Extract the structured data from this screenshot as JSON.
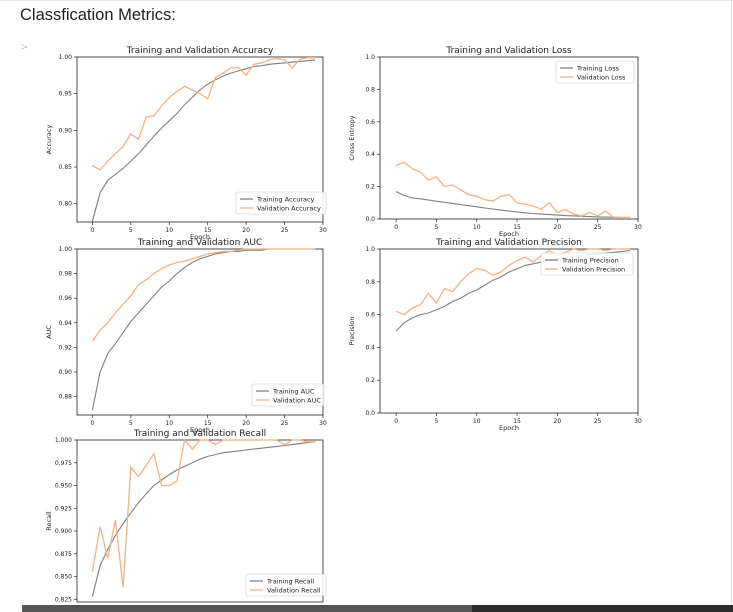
{
  "heading": "Classfication Metrics:",
  "out_prompt": ">",
  "colors": {
    "training": "#7f7f7f",
    "validation": "#f4b183",
    "axis": "#222222"
  },
  "chart_data": [
    {
      "type": "line",
      "title": "Training and Validation Accuracy",
      "xlabel": "Epoch",
      "ylabel": "Accuracy",
      "xlim": [
        -2,
        30
      ],
      "ylim": [
        0.775,
        1.0
      ],
      "xticks": [
        0,
        5,
        10,
        15,
        20,
        25,
        30
      ],
      "yticks": [
        0.8,
        0.85,
        0.9,
        0.95,
        1.0
      ],
      "ytick_labels": [
        "0.80",
        "0.85",
        "0.90",
        "0.95",
        "1.00"
      ],
      "legend": "lower-right",
      "x": [
        0,
        1,
        2,
        3,
        4,
        5,
        6,
        7,
        8,
        9,
        10,
        11,
        12,
        13,
        14,
        15,
        16,
        17,
        18,
        19,
        20,
        21,
        22,
        23,
        24,
        25,
        26,
        27,
        28,
        29
      ],
      "series": [
        {
          "name": "Training Accuracy",
          "role": "training",
          "values": [
            0.776,
            0.815,
            0.832,
            0.84,
            0.848,
            0.858,
            0.868,
            0.88,
            0.892,
            0.903,
            0.913,
            0.923,
            0.935,
            0.945,
            0.955,
            0.963,
            0.969,
            0.974,
            0.978,
            0.981,
            0.984,
            0.987,
            0.988,
            0.99,
            0.991,
            0.992,
            0.993,
            0.994,
            0.995,
            0.996
          ]
        },
        {
          "name": "Validation Accuracy",
          "role": "validation",
          "values": [
            0.852,
            0.846,
            0.858,
            0.868,
            0.878,
            0.895,
            0.888,
            0.918,
            0.92,
            0.933,
            0.945,
            0.953,
            0.96,
            0.955,
            0.95,
            0.943,
            0.972,
            0.978,
            0.985,
            0.986,
            0.975,
            0.99,
            0.992,
            0.996,
            0.998,
            0.996,
            0.985,
            0.997,
            0.999,
            0.999
          ]
        }
      ]
    },
    {
      "type": "line",
      "title": "Training and Validation Loss",
      "xlabel": "Epoch",
      "ylabel": "Cross Entropy",
      "xlim": [
        -2,
        30
      ],
      "ylim": [
        0.0,
        1.0
      ],
      "xticks": [
        0,
        5,
        10,
        15,
        20,
        25,
        30
      ],
      "yticks": [
        0.0,
        0.2,
        0.4,
        0.6,
        0.8,
        1.0
      ],
      "ytick_labels": [
        "0.0",
        "0.2",
        "0.4",
        "0.6",
        "0.8",
        "1.0"
      ],
      "legend": "top-right",
      "x": [
        0,
        1,
        2,
        3,
        4,
        5,
        6,
        7,
        8,
        9,
        10,
        11,
        12,
        13,
        14,
        15,
        16,
        17,
        18,
        19,
        20,
        21,
        22,
        23,
        24,
        25,
        26,
        27,
        28,
        29
      ],
      "series": [
        {
          "name": "Training Loss",
          "role": "training",
          "values": [
            0.17,
            0.145,
            0.13,
            0.125,
            0.118,
            0.11,
            0.103,
            0.096,
            0.089,
            0.082,
            0.075,
            0.068,
            0.061,
            0.055,
            0.049,
            0.043,
            0.038,
            0.034,
            0.03,
            0.027,
            0.024,
            0.021,
            0.019,
            0.017,
            0.015,
            0.013,
            0.012,
            0.011,
            0.01,
            0.009
          ]
        },
        {
          "name": "Validation Loss",
          "role": "validation",
          "values": [
            0.33,
            0.35,
            0.31,
            0.29,
            0.24,
            0.26,
            0.2,
            0.21,
            0.18,
            0.15,
            0.14,
            0.12,
            0.11,
            0.14,
            0.15,
            0.1,
            0.09,
            0.08,
            0.06,
            0.1,
            0.04,
            0.06,
            0.03,
            0.02,
            0.04,
            0.02,
            0.05,
            0.01,
            0.01,
            0.01
          ]
        }
      ]
    },
    {
      "type": "line",
      "title": "Training and Validation AUC",
      "xlabel": "Epoch",
      "ylabel": "AUC",
      "xlim": [
        -2,
        30
      ],
      "ylim": [
        0.865,
        1.0
      ],
      "xticks": [
        0,
        5,
        10,
        15,
        20,
        25,
        30
      ],
      "yticks": [
        0.88,
        0.9,
        0.92,
        0.94,
        0.96,
        0.98,
        1.0
      ],
      "ytick_labels": [
        "0.88",
        "0.90",
        "0.92",
        "0.94",
        "0.96",
        "0.98",
        "1.00"
      ],
      "legend": "lower-right",
      "x": [
        0,
        1,
        2,
        3,
        4,
        5,
        6,
        7,
        8,
        9,
        10,
        11,
        12,
        13,
        14,
        15,
        16,
        17,
        18,
        19,
        20,
        21,
        22,
        23,
        24,
        25,
        26,
        27,
        28,
        29
      ],
      "series": [
        {
          "name": "Training AUC",
          "role": "training",
          "values": [
            0.869,
            0.9,
            0.915,
            0.923,
            0.932,
            0.941,
            0.948,
            0.955,
            0.962,
            0.969,
            0.974,
            0.98,
            0.985,
            0.989,
            0.992,
            0.994,
            0.996,
            0.997,
            0.998,
            0.998,
            0.999,
            0.999,
            0.999,
            1.0,
            1.0,
            1.0,
            1.0,
            1.0,
            1.0,
            1.0
          ]
        },
        {
          "name": "Validation AUC",
          "role": "validation",
          "values": [
            0.925,
            0.934,
            0.94,
            0.948,
            0.955,
            0.962,
            0.971,
            0.975,
            0.98,
            0.984,
            0.987,
            0.989,
            0.99,
            0.992,
            0.994,
            0.996,
            0.997,
            0.998,
            0.998,
            0.999,
            1.0,
            1.0,
            1.0,
            1.0,
            1.0,
            1.0,
            1.0,
            1.0,
            1.0,
            1.0
          ]
        }
      ]
    },
    {
      "type": "line",
      "title": "Training and Validation Precision",
      "xlabel": "Epoch",
      "ylabel": "Precision",
      "xlim": [
        -2,
        30
      ],
      "ylim": [
        0.0,
        1.0
      ],
      "xticks": [
        0,
        5,
        10,
        15,
        20,
        25,
        30
      ],
      "yticks": [
        0.0,
        0.2,
        0.4,
        0.6,
        0.8,
        1.0
      ],
      "ytick_labels": [
        "0.0",
        "0.2",
        "0.4",
        "0.6",
        "0.8",
        "1.0"
      ],
      "legend": "top-right",
      "x": [
        0,
        1,
        2,
        3,
        4,
        5,
        6,
        7,
        8,
        9,
        10,
        11,
        12,
        13,
        14,
        15,
        16,
        17,
        18,
        19,
        20,
        21,
        22,
        23,
        24,
        25,
        26,
        27,
        28,
        29
      ],
      "series": [
        {
          "name": "Training Precision",
          "role": "training",
          "values": [
            0.5,
            0.55,
            0.58,
            0.6,
            0.61,
            0.63,
            0.65,
            0.68,
            0.7,
            0.73,
            0.75,
            0.78,
            0.81,
            0.83,
            0.86,
            0.88,
            0.9,
            0.91,
            0.92,
            0.93,
            0.94,
            0.95,
            0.955,
            0.96,
            0.965,
            0.97,
            0.975,
            0.98,
            0.985,
            0.99
          ]
        },
        {
          "name": "Validation Precision",
          "role": "validation",
          "values": [
            0.62,
            0.6,
            0.64,
            0.66,
            0.73,
            0.67,
            0.76,
            0.74,
            0.8,
            0.85,
            0.88,
            0.87,
            0.84,
            0.86,
            0.9,
            0.93,
            0.95,
            0.92,
            0.96,
            0.99,
            0.96,
            0.98,
            1.0,
            0.99,
            1.0,
            1.0,
            0.99,
            1.0,
            1.0,
            1.0
          ]
        }
      ]
    },
    {
      "type": "line",
      "title": "Training and Validation Recall",
      "xlabel": "",
      "ylabel": "Recall",
      "xlim": [
        -2,
        30
      ],
      "ylim": [
        0.822,
        1.0
      ],
      "xticks": [],
      "yticks": [
        0.825,
        0.85,
        0.875,
        0.9,
        0.925,
        0.95,
        0.975,
        1.0
      ],
      "ytick_labels": [
        "0.825",
        "0.850",
        "0.875",
        "0.900",
        "0.925",
        "0.950",
        "0.975",
        "1.000"
      ],
      "legend": "lower-right",
      "x": [
        0,
        1,
        2,
        3,
        4,
        5,
        6,
        7,
        8,
        9,
        10,
        11,
        12,
        13,
        14,
        15,
        16,
        17,
        18,
        19,
        20,
        21,
        22,
        23,
        24,
        25,
        26,
        27,
        28,
        29
      ],
      "series": [
        {
          "name": "Training Recall",
          "role": "training",
          "values": [
            0.828,
            0.862,
            0.88,
            0.895,
            0.908,
            0.92,
            0.931,
            0.941,
            0.95,
            0.956,
            0.962,
            0.967,
            0.971,
            0.975,
            0.979,
            0.982,
            0.984,
            0.986,
            0.987,
            0.988,
            0.989,
            0.99,
            0.991,
            0.992,
            0.993,
            0.994,
            0.995,
            0.996,
            0.997,
            0.998
          ]
        },
        {
          "name": "Validation Recall",
          "role": "validation",
          "values": [
            0.855,
            0.905,
            0.87,
            0.912,
            0.838,
            0.97,
            0.96,
            0.972,
            0.985,
            0.95,
            0.95,
            0.955,
            1.0,
            0.99,
            1.0,
            1.0,
            0.995,
            1.0,
            1.0,
            1.0,
            1.0,
            1.0,
            1.0,
            1.0,
            1.0,
            0.995,
            1.0,
            1.0,
            0.998,
            0.998
          ]
        }
      ]
    }
  ]
}
